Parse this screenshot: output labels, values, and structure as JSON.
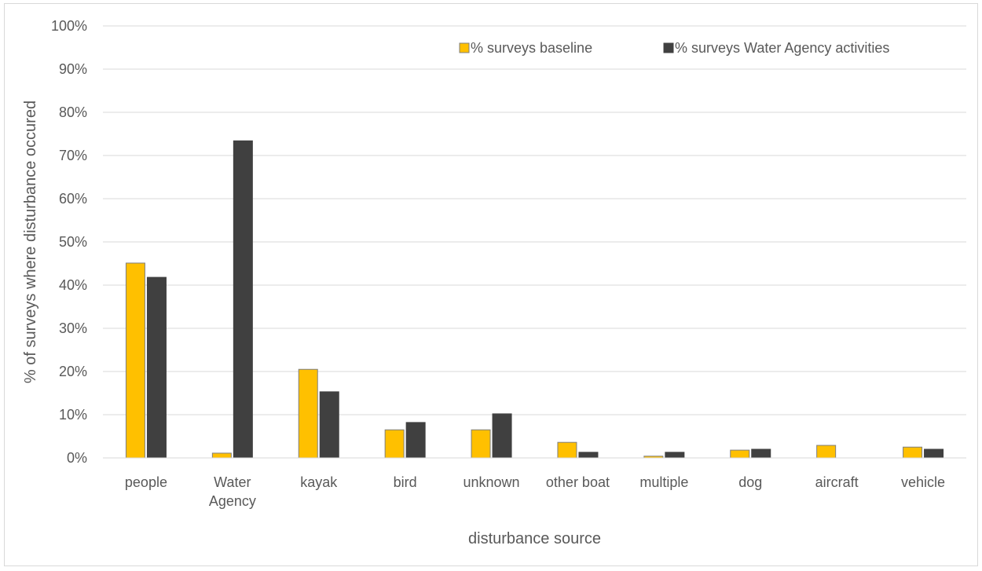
{
  "chart_data": {
    "type": "bar",
    "title": "",
    "xlabel": "disturbance source",
    "ylabel": "% of surveys where disturbance occured",
    "ylim": [
      0,
      100
    ],
    "yticks": [
      "0%",
      "10%",
      "20%",
      "30%",
      "40%",
      "50%",
      "60%",
      "70%",
      "80%",
      "90%",
      "100%"
    ],
    "categories": [
      [
        "people"
      ],
      [
        "Water",
        "Agency"
      ],
      [
        "kayak"
      ],
      [
        "bird"
      ],
      [
        "unknown"
      ],
      [
        "other boat"
      ],
      [
        "multiple"
      ],
      [
        "dog"
      ],
      [
        "aircraft"
      ],
      [
        "vehicle"
      ]
    ],
    "series": [
      {
        "name": "% surveys baseline",
        "color": "#FFC000",
        "values": [
          45.1,
          1.1,
          20.5,
          6.5,
          6.5,
          3.6,
          0.4,
          1.8,
          2.9,
          2.5
        ]
      },
      {
        "name": "% surveys Water Agency activities",
        "color": "#404040",
        "values": [
          41.8,
          73.4,
          15.3,
          8.2,
          10.2,
          1.3,
          1.3,
          2.0,
          0.0,
          2.0
        ]
      }
    ],
    "grid": true,
    "legend_position": "top-right"
  }
}
